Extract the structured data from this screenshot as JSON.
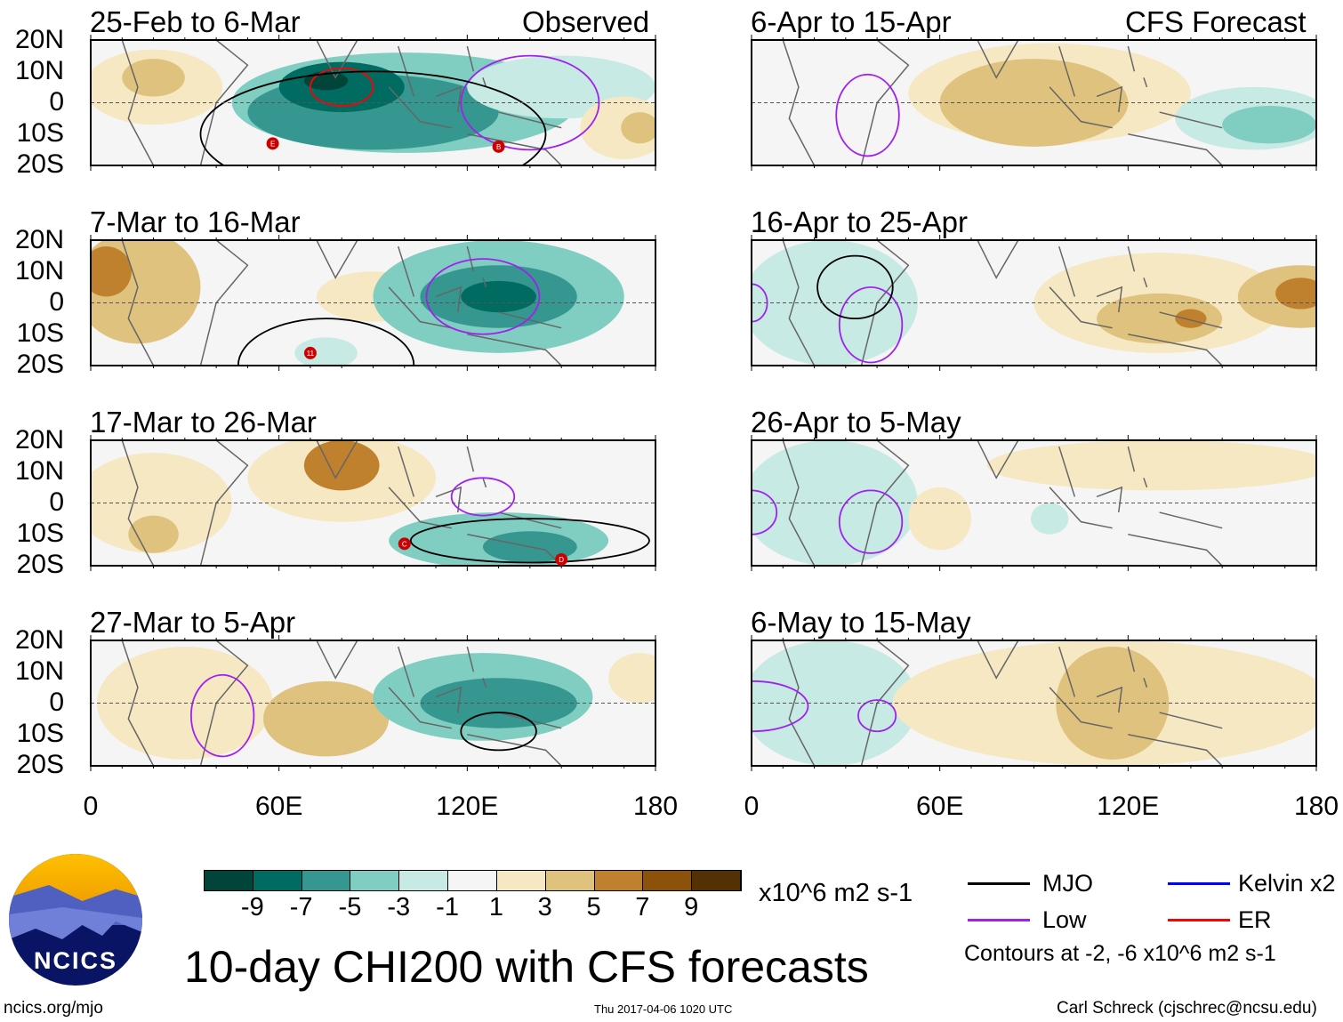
{
  "title": "10-day CHI200 with CFS forecasts",
  "column_headers": {
    "left": "Observed",
    "right": "CFS Forecast"
  },
  "panels": [
    {
      "title": "25-Feb to 6-Mar"
    },
    {
      "title": "7-Mar to 16-Mar"
    },
    {
      "title": "17-Mar to 26-Mar"
    },
    {
      "title": "27-Mar to 5-Apr"
    },
    {
      "title": "6-Apr to 15-Apr"
    },
    {
      "title": "16-Apr to 25-Apr"
    },
    {
      "title": "26-Apr to 5-May"
    },
    {
      "title": "6-May to 15-May"
    }
  ],
  "lat_labels": [
    "20N",
    "10N",
    "0",
    "10S",
    "20S"
  ],
  "lon_labels": [
    "0",
    "60E",
    "120E",
    "180"
  ],
  "storm_labels": [
    "E",
    "B",
    "11",
    "C",
    "D"
  ],
  "colorbar": {
    "labels": [
      "-9",
      "-7",
      "-5",
      "-3",
      "-1",
      "1",
      "3",
      "5",
      "7",
      "9"
    ],
    "units": "x10^6 m2 s-1",
    "colors": [
      "#01443a",
      "#006b60",
      "#35978f",
      "#80cdc1",
      "#c7eae5",
      "#f5f5f5",
      "#f6e8c3",
      "#dfc27d",
      "#bf812d",
      "#8c510a",
      "#543005"
    ]
  },
  "legend": {
    "items": [
      {
        "label": "MJO",
        "color": "#000000"
      },
      {
        "label": "Kelvin x2",
        "color": "#0000ff"
      },
      {
        "label": "Low",
        "color": "#a020f0"
      },
      {
        "label": "ER",
        "color": "#ff0000"
      }
    ],
    "note": "Contours at -2, -6 x10^6 m2 s-1"
  },
  "logo_text": "NCICS",
  "footer": {
    "url": "ncics.org/mjo",
    "timestamp": "Thu 2017-04-06 1020 UTC",
    "author": "Carl Schreck (cjschrec@ncsu.edu)"
  }
}
